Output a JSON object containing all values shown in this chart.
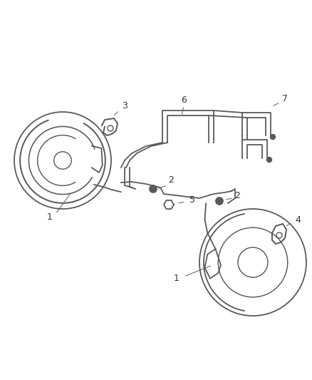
{
  "background_color": "#ffffff",
  "line_color": "#5a5a5a",
  "label_color": "#333333",
  "figure_width": 4.38,
  "figure_height": 5.33,
  "dpi": 100
}
